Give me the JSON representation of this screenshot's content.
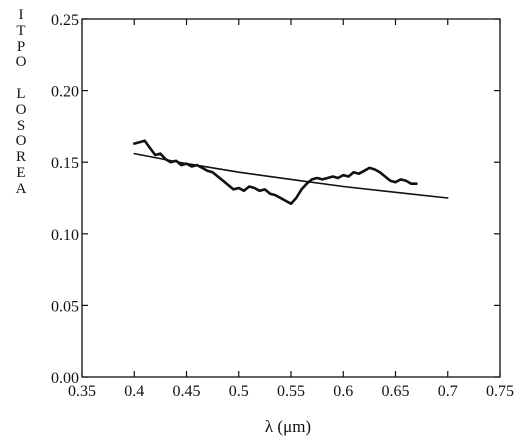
{
  "chart_data": {
    "type": "line",
    "title": "",
    "ylabel_letters": [
      "I",
      "T",
      "P",
      "O",
      "",
      "L",
      "O",
      "S",
      "O",
      "R",
      "E",
      "A"
    ],
    "xlabel": "λ (μm)",
    "xlim": [
      0.35,
      0.75
    ],
    "ylim": [
      0.0,
      0.25
    ],
    "x_ticks": [
      0.35,
      0.4,
      0.45,
      0.5,
      0.55,
      0.6,
      0.65,
      0.7,
      0.75
    ],
    "x_tick_labels": [
      "0.35",
      "0.4",
      "0.45",
      "0.5",
      "0.55",
      "0.6",
      "0.65",
      "0.7",
      "0.75"
    ],
    "y_ticks": [
      0.0,
      0.05,
      0.1,
      0.15,
      0.2,
      0.25
    ],
    "y_tick_labels": [
      "0.00",
      "0.05",
      "0.10",
      "0.15",
      "0.20",
      "0.25"
    ],
    "grid": false,
    "series": [
      {
        "style": "noisy",
        "x": [
          0.4,
          0.405,
          0.41,
          0.415,
          0.42,
          0.425,
          0.43,
          0.435,
          0.44,
          0.445,
          0.45,
          0.455,
          0.46,
          0.465,
          0.47,
          0.475,
          0.48,
          0.485,
          0.49,
          0.495,
          0.5,
          0.505,
          0.51,
          0.515,
          0.52,
          0.525,
          0.53,
          0.535,
          0.54,
          0.545,
          0.55,
          0.555,
          0.56,
          0.565,
          0.57,
          0.575,
          0.58,
          0.585,
          0.59,
          0.595,
          0.6,
          0.605,
          0.61,
          0.615,
          0.62,
          0.625,
          0.63,
          0.635,
          0.64,
          0.645,
          0.65,
          0.655,
          0.66,
          0.665,
          0.67
        ],
        "y": [
          0.163,
          0.164,
          0.165,
          0.16,
          0.155,
          0.156,
          0.152,
          0.15,
          0.151,
          0.148,
          0.149,
          0.147,
          0.148,
          0.146,
          0.144,
          0.143,
          0.14,
          0.137,
          0.134,
          0.131,
          0.132,
          0.13,
          0.133,
          0.132,
          0.13,
          0.131,
          0.128,
          0.127,
          0.125,
          0.123,
          0.121,
          0.125,
          0.131,
          0.135,
          0.138,
          0.139,
          0.138,
          0.139,
          0.14,
          0.139,
          0.141,
          0.14,
          0.143,
          0.142,
          0.144,
          0.146,
          0.145,
          0.143,
          0.14,
          0.137,
          0.136,
          0.138,
          0.137,
          0.135,
          0.135
        ]
      },
      {
        "style": "smooth",
        "x": [
          0.4,
          0.45,
          0.5,
          0.55,
          0.6,
          0.65,
          0.7
        ],
        "y": [
          0.156,
          0.149,
          0.143,
          0.138,
          0.133,
          0.129,
          0.125
        ]
      }
    ]
  }
}
